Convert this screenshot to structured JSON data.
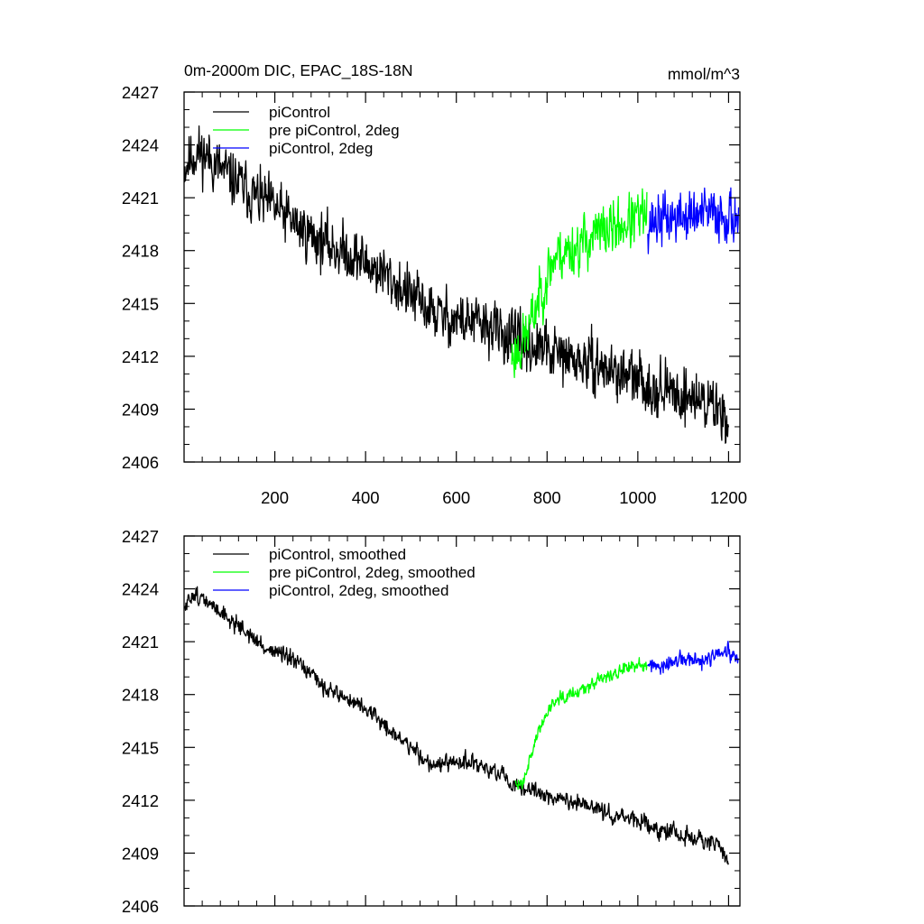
{
  "chart_data": [
    {
      "type": "line",
      "title": "0m-2000m DIC, EPAC_18S-18N",
      "units": "mmol/m^3",
      "xlim": [
        0,
        1225
      ],
      "ylim": [
        2406,
        2427
      ],
      "x_ticks": [
        200,
        400,
        600,
        800,
        1000,
        1200
      ],
      "x_tick_labels": [
        "200",
        "400",
        "600",
        "800",
        "1000",
        "1200"
      ],
      "y_ticks": [
        2406,
        2409,
        2412,
        2415,
        2418,
        2421,
        2424,
        2427
      ],
      "y_tick_labels": [
        "2406",
        "2409",
        "2412",
        "2415",
        "2418",
        "2421",
        "2424",
        "2427"
      ],
      "legend_position": "top-left",
      "series": [
        {
          "name": "piControl",
          "color": "#000000",
          "x": [
            1,
            25,
            50,
            80,
            120,
            160,
            200,
            260,
            320,
            380,
            440,
            500,
            560,
            620,
            680,
            720,
            760,
            800,
            840,
            880,
            920,
            960,
            1000,
            1040,
            1080,
            1120,
            1160,
            1200
          ],
          "mean": [
            2422.8,
            2423.6,
            2423.4,
            2422.6,
            2421.8,
            2421.0,
            2420.4,
            2419.2,
            2418.3,
            2417.6,
            2416.7,
            2415.4,
            2414.3,
            2414.0,
            2413.6,
            2413.0,
            2412.6,
            2412.3,
            2411.9,
            2411.6,
            2411.4,
            2411.0,
            2410.6,
            2410.2,
            2409.9,
            2409.7,
            2409.3,
            2408.6
          ],
          "noise": 1.05,
          "seed": 11
        },
        {
          "name": "pre piControl, 2deg",
          "color": "#00ff00",
          "x": [
            722,
            740,
            760,
            780,
            800,
            820,
            840,
            870,
            900,
            940,
            980,
            1020
          ],
          "mean": [
            2412.0,
            2412.5,
            2413.5,
            2415.2,
            2416.6,
            2417.8,
            2417.9,
            2418.3,
            2418.8,
            2419.2,
            2419.6,
            2420.0
          ],
          "noise": 1.05,
          "seed": 23
        },
        {
          "name": "piControl, 2deg",
          "color": "#0000ff",
          "x": [
            1022,
            1060,
            1100,
            1140,
            1180,
            1222
          ],
          "mean": [
            2419.6,
            2419.8,
            2419.9,
            2420.0,
            2420.1,
            2419.9
          ],
          "noise": 1.0,
          "seed": 37
        }
      ]
    },
    {
      "type": "line",
      "title": "",
      "units": "",
      "xlim": [
        0,
        1225
      ],
      "ylim": [
        2406,
        2427
      ],
      "x_ticks": [
        200,
        400,
        600,
        800,
        1000,
        1200
      ],
      "x_tick_labels": [],
      "y_ticks": [
        2406,
        2409,
        2412,
        2415,
        2418,
        2421,
        2424,
        2427
      ],
      "y_tick_labels": [
        "2406",
        "2409",
        "2412",
        "2415",
        "2418",
        "2421",
        "2424",
        "2427"
      ],
      "legend_position": "top-left",
      "series": [
        {
          "name": "piControl, smoothed",
          "color": "#000000",
          "x": [
            1,
            20,
            40,
            60,
            80,
            100,
            120,
            150,
            180,
            200,
            230,
            260,
            300,
            340,
            380,
            420,
            460,
            500,
            540,
            580,
            620,
            660,
            700,
            720,
            760,
            800,
            840,
            880,
            920,
            960,
            1000,
            1040,
            1080,
            1120,
            1160,
            1180,
            1200
          ],
          "mean": [
            2422.8,
            2423.8,
            2423.4,
            2423.0,
            2422.8,
            2422.2,
            2422.0,
            2421.2,
            2420.6,
            2420.5,
            2420.0,
            2419.6,
            2418.6,
            2418.0,
            2417.5,
            2416.8,
            2415.8,
            2415.0,
            2414.1,
            2414.0,
            2414.2,
            2413.9,
            2413.4,
            2412.8,
            2412.6,
            2412.3,
            2412.0,
            2411.7,
            2411.4,
            2411.1,
            2410.8,
            2410.4,
            2410.2,
            2409.8,
            2409.6,
            2409.3,
            2408.6
          ],
          "noise": 0.32,
          "seed": 51
        },
        {
          "name": "pre piControl, 2deg, smoothed",
          "color": "#00ff00",
          "x": [
            730,
            745,
            760,
            780,
            800,
            820,
            840,
            870,
            900,
            940,
            980,
            1020
          ],
          "mean": [
            2412.8,
            2413.0,
            2414.2,
            2415.8,
            2417.0,
            2417.8,
            2418.0,
            2418.2,
            2418.7,
            2419.1,
            2419.5,
            2419.8
          ],
          "noise": 0.25,
          "seed": 63
        },
        {
          "name": "piControl, 2deg, smoothed",
          "color": "#0000ff",
          "x": [
            1022,
            1050,
            1080,
            1110,
            1140,
            1170,
            1200,
            1222
          ],
          "mean": [
            2419.8,
            2419.4,
            2419.9,
            2420.0,
            2419.8,
            2420.2,
            2420.4,
            2419.8
          ],
          "noise": 0.3,
          "seed": 77
        }
      ]
    }
  ]
}
